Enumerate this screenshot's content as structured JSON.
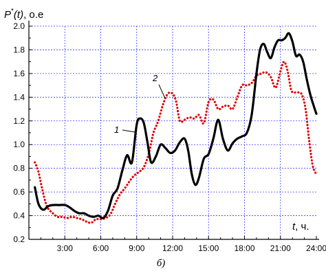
{
  "chart_data": {
    "type": "line",
    "y_title": {
      "symbol": "P",
      "superscript": "*",
      "arg": "(t)",
      "unit": ", о.е"
    },
    "x_title": {
      "symbol": "t",
      "unit": ", ч."
    },
    "caption": "б)",
    "xlim": [
      0,
      24
    ],
    "ylim": [
      0.2,
      2.0
    ],
    "x_ticks": [
      3,
      6,
      9,
      12,
      15,
      18,
      21,
      24
    ],
    "x_tick_labels": [
      "3:00",
      "6:00",
      "9:00",
      "12:00",
      "15:00",
      "18:00",
      "21:00",
      "24:00"
    ],
    "y_ticks": [
      0.2,
      0.4,
      0.6,
      0.8,
      1.0,
      1.2,
      1.4,
      1.6,
      1.8,
      2.0
    ],
    "y_tick_labels": [
      "0.2",
      "0.4",
      "0.6",
      "0.8",
      "1.0",
      "1.2",
      "1.4",
      "1.6",
      "1.8",
      "2.0"
    ],
    "grid": true,
    "series": [
      {
        "name": "1",
        "color": "#000000",
        "style": "solid",
        "x": [
          0.5,
          0.8,
          1.2,
          1.6,
          2.0,
          2.5,
          3.0,
          3.4,
          3.8,
          4.2,
          4.6,
          5.0,
          5.4,
          5.8,
          6.2,
          6.6,
          7.0,
          7.4,
          7.8,
          8.2,
          8.6,
          9.0,
          9.3,
          9.6,
          9.9,
          10.2,
          10.6,
          11.0,
          11.4,
          11.8,
          12.2,
          12.6,
          13.0,
          13.3,
          13.6,
          13.9,
          14.2,
          14.6,
          15.0,
          15.4,
          15.8,
          16.2,
          16.6,
          17.0,
          17.4,
          17.8,
          18.2,
          18.6,
          19.0,
          19.3,
          19.6,
          19.9,
          20.2,
          20.5,
          20.8,
          21.1,
          21.4,
          21.7,
          22.0,
          22.3,
          22.6,
          22.9,
          23.2,
          23.5,
          23.8,
          24.0
        ],
        "y": [
          0.64,
          0.5,
          0.45,
          0.48,
          0.49,
          0.49,
          0.49,
          0.47,
          0.44,
          0.42,
          0.42,
          0.4,
          0.39,
          0.4,
          0.38,
          0.44,
          0.57,
          0.63,
          0.78,
          0.91,
          0.85,
          1.17,
          1.22,
          1.18,
          1.02,
          0.85,
          0.9,
          1.0,
          0.97,
          0.93,
          0.95,
          1.02,
          1.05,
          0.95,
          0.75,
          0.66,
          0.72,
          0.88,
          0.92,
          1.05,
          1.21,
          1.05,
          0.95,
          1.01,
          1.05,
          1.07,
          1.1,
          1.25,
          1.6,
          1.8,
          1.85,
          1.78,
          1.73,
          1.82,
          1.88,
          1.88,
          1.9,
          1.94,
          1.87,
          1.75,
          1.76,
          1.7,
          1.55,
          1.42,
          1.32,
          1.26
        ]
      },
      {
        "name": "2",
        "color": "#e00000",
        "style": "dotted",
        "x": [
          0.5,
          0.8,
          1.1,
          1.5,
          2.0,
          2.4,
          2.8,
          3.2,
          3.6,
          4.0,
          4.4,
          4.8,
          5.2,
          5.6,
          6.0,
          6.4,
          6.8,
          7.2,
          7.6,
          8.0,
          8.4,
          8.8,
          9.2,
          9.6,
          10.0,
          10.4,
          10.8,
          11.2,
          11.6,
          12.0,
          12.3,
          12.6,
          13.0,
          13.4,
          13.8,
          14.2,
          14.6,
          15.0,
          15.4,
          15.8,
          16.2,
          16.6,
          17.0,
          17.4,
          17.8,
          18.2,
          18.6,
          19.0,
          19.4,
          19.8,
          20.2,
          20.6,
          21.0,
          21.3,
          21.6,
          21.9,
          22.2,
          22.5,
          22.8,
          23.1,
          23.4,
          23.7,
          24.0
        ],
        "y": [
          0.85,
          0.77,
          0.63,
          0.48,
          0.42,
          0.39,
          0.39,
          0.38,
          0.39,
          0.38,
          0.37,
          0.35,
          0.34,
          0.37,
          0.37,
          0.38,
          0.41,
          0.5,
          0.58,
          0.63,
          0.69,
          0.74,
          0.77,
          0.81,
          0.92,
          1.1,
          1.2,
          1.34,
          1.43,
          1.43,
          1.36,
          1.2,
          1.21,
          1.23,
          1.22,
          1.25,
          1.18,
          1.36,
          1.38,
          1.3,
          1.32,
          1.33,
          1.3,
          1.4,
          1.5,
          1.5,
          1.52,
          1.58,
          1.6,
          1.61,
          1.57,
          1.48,
          1.62,
          1.7,
          1.62,
          1.46,
          1.44,
          1.44,
          1.42,
          1.3,
          1.03,
          0.82,
          0.75
        ]
      }
    ]
  }
}
